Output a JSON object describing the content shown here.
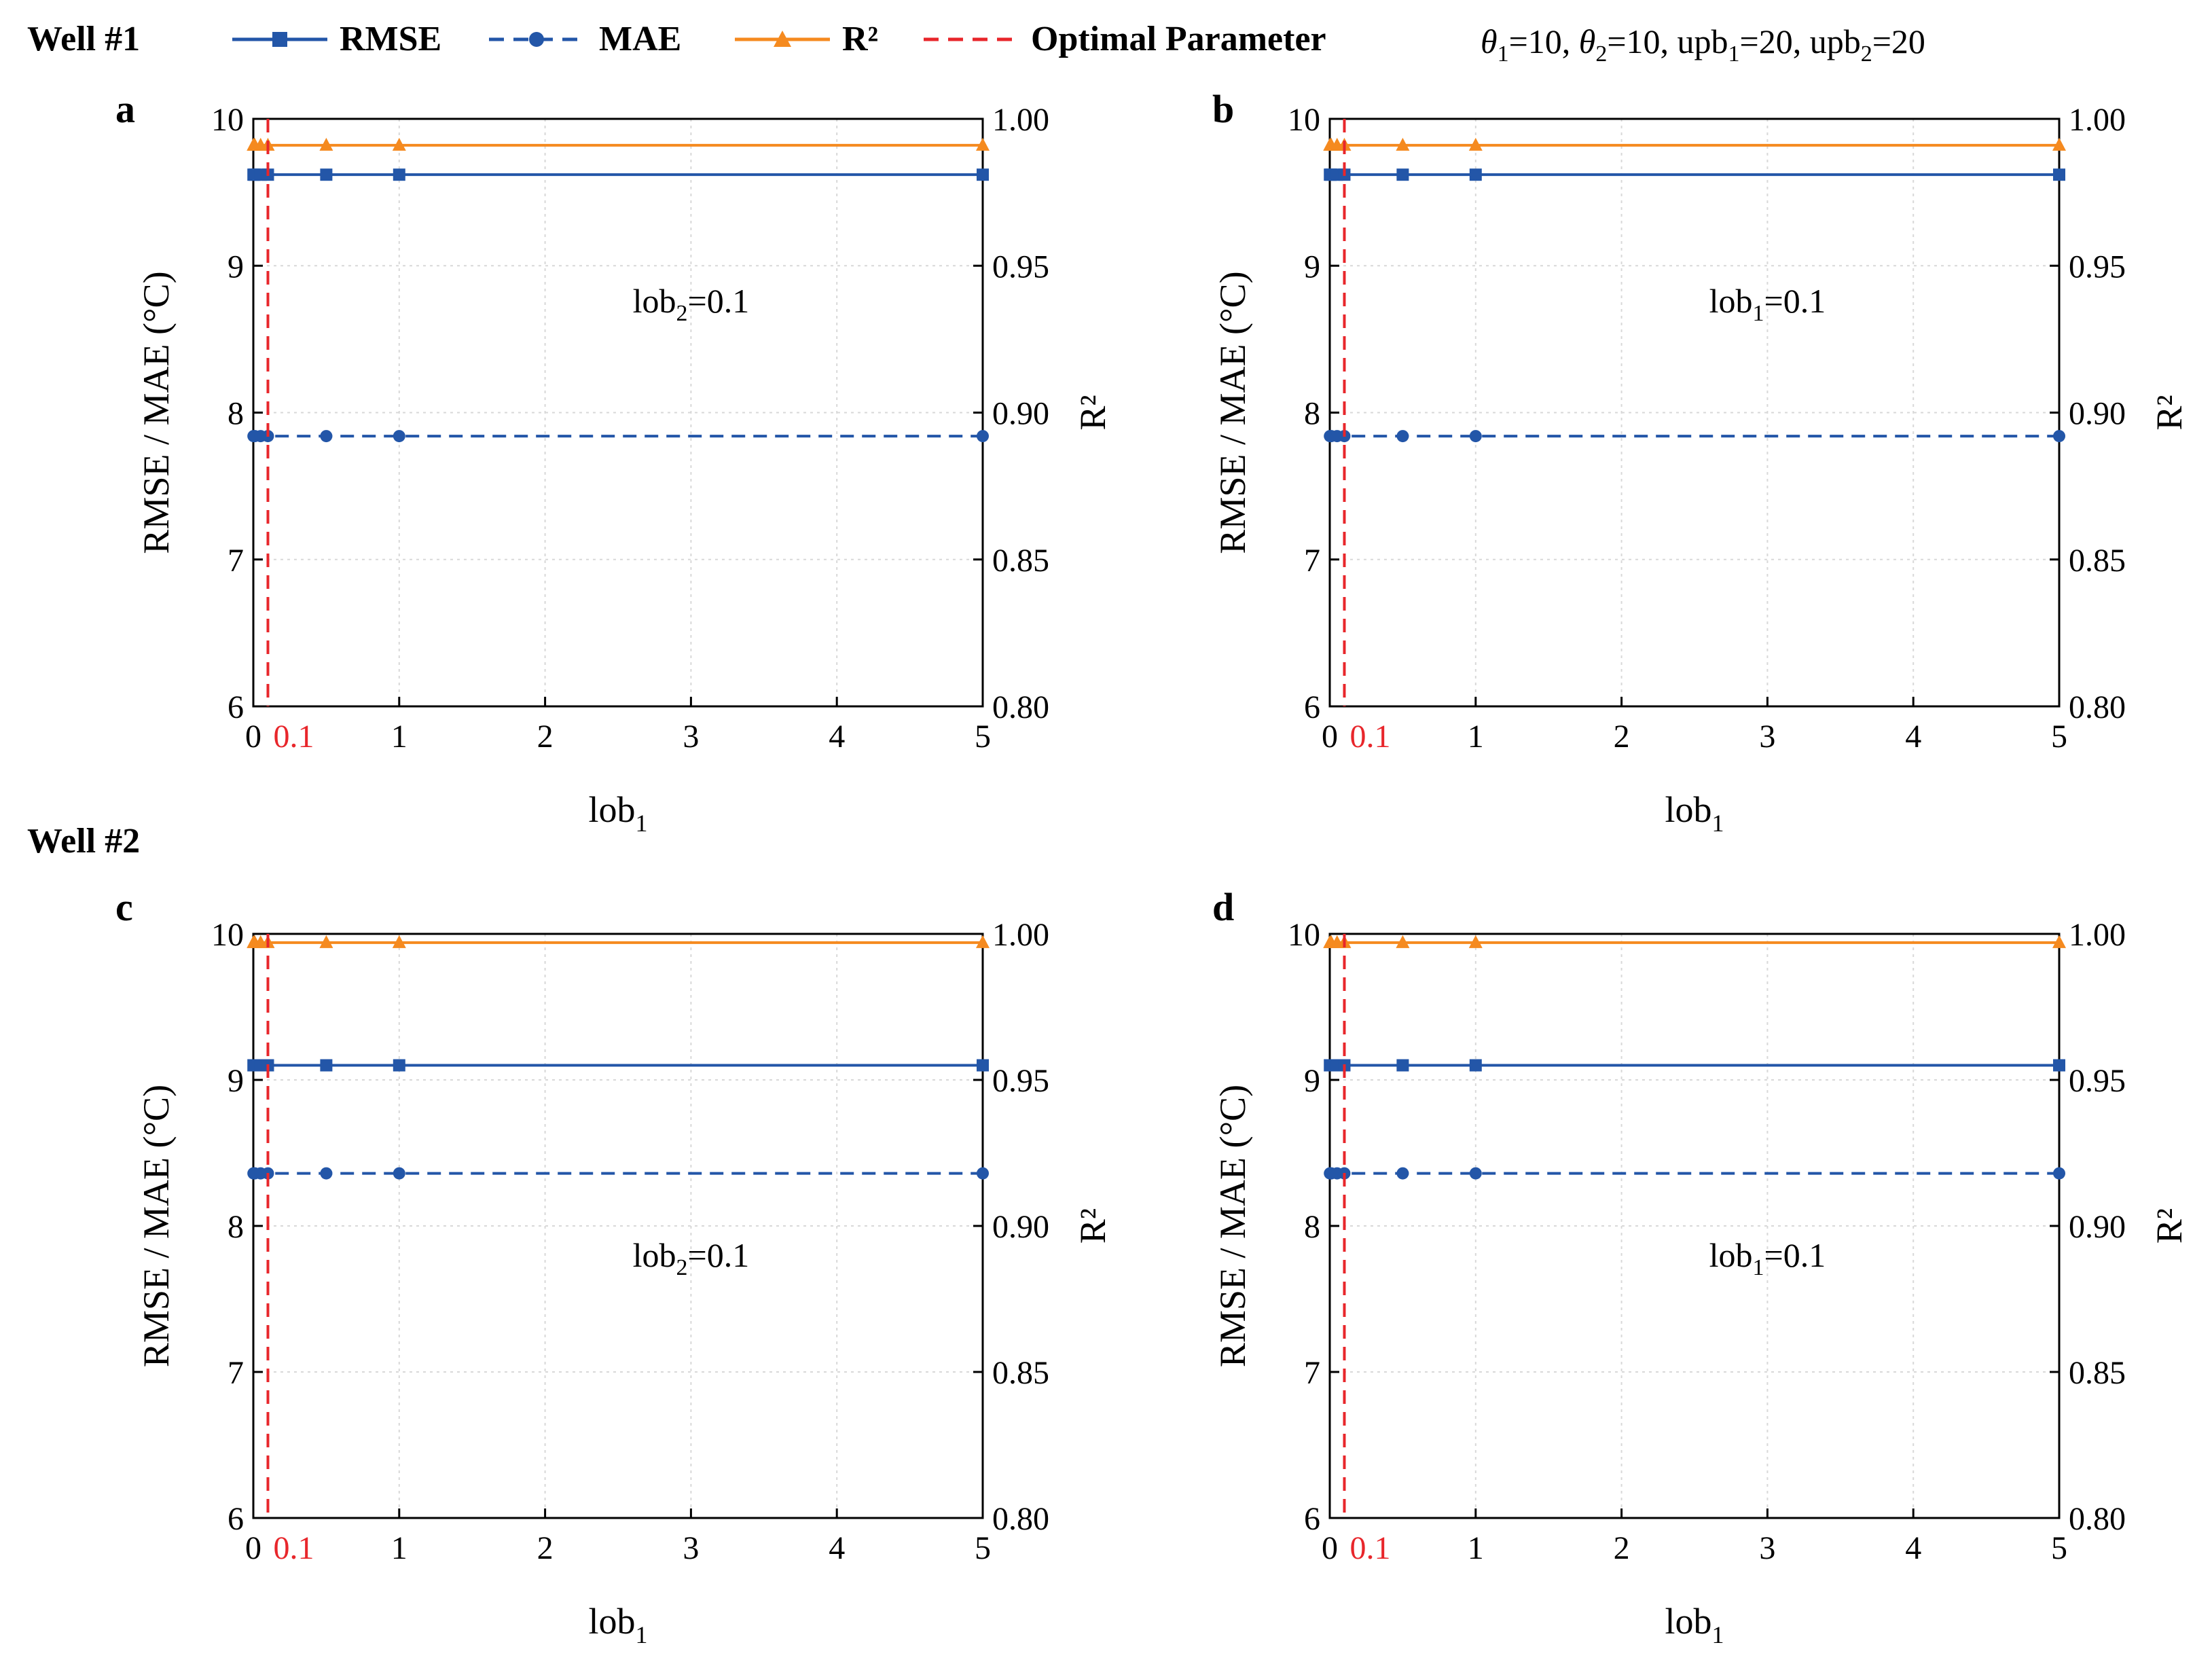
{
  "figure": {
    "well1_label": "Well #1",
    "well2_label": "Well #2",
    "params_text": {
      "theta1_sym": "θ",
      "theta1_sub": "1",
      "theta1_val": "=10, ",
      "theta2_sym": "θ",
      "theta2_sub": "2",
      "theta2_val": "=10, ",
      "upb1_base": "upb",
      "upb1_sub": "1",
      "upb1_val": "=20, ",
      "upb2_base": "upb",
      "upb2_sub": "2",
      "upb2_val": "=20"
    },
    "legend": [
      {
        "key": "rmse",
        "label": "RMSE",
        "color": "#2356A8",
        "dash": "solid",
        "marker": "square"
      },
      {
        "key": "mae",
        "label": "MAE",
        "color": "#2356A8",
        "dash": "dashed",
        "marker": "circle"
      },
      {
        "key": "r2",
        "label": "R²",
        "color": "#F58A1F",
        "dash": "solid",
        "marker": "triangle"
      },
      {
        "key": "opt",
        "label": "Optimal Parameter",
        "color": "#E8262B",
        "dash": "dashed",
        "marker": "none"
      }
    ]
  },
  "chart_data": [
    {
      "type": "line",
      "panel": "a",
      "well": "Well #1",
      "xlabel_base": "lob",
      "xlabel_sub": "1",
      "ylabel": "RMSE / MAE (°C)",
      "ylabel2": "R²",
      "annotation": {
        "base": "lob",
        "sub": "2",
        "rest": "=0.1"
      },
      "xlim": [
        0,
        5
      ],
      "ylim": [
        6,
        10
      ],
      "y2lim": [
        0.8,
        1.0
      ],
      "xticks": [
        "0",
        "1",
        "2",
        "3",
        "4",
        "5"
      ],
      "xtick_special": "0.1",
      "yticks": [
        "6",
        "7",
        "8",
        "9",
        "10"
      ],
      "y2ticks": [
        "0.80",
        "0.85",
        "0.90",
        "0.95",
        "1.00"
      ],
      "optimal_x": 0.1,
      "x": [
        0.001,
        0.01,
        0.05,
        0.1,
        0.5,
        1,
        5
      ],
      "series": [
        {
          "name": "RMSE",
          "axis": "left",
          "values": [
            9.62,
            9.62,
            9.62,
            9.62,
            9.62,
            9.62,
            9.62
          ]
        },
        {
          "name": "MAE",
          "axis": "left",
          "values": [
            7.84,
            7.84,
            7.84,
            7.84,
            7.84,
            7.84,
            7.84
          ]
        },
        {
          "name": "R²",
          "axis": "right",
          "values": [
            0.991,
            0.991,
            0.991,
            0.991,
            0.991,
            0.991,
            0.991
          ]
        }
      ]
    },
    {
      "type": "line",
      "panel": "b",
      "well": "Well #1",
      "xlabel_base": "lob",
      "xlabel_sub": "1",
      "ylabel": "RMSE / MAE (°C)",
      "ylabel2": "R²",
      "annotation": {
        "base": "lob",
        "sub": "1",
        "rest": "=0.1"
      },
      "xlim": [
        0,
        5
      ],
      "ylim": [
        6,
        10
      ],
      "y2lim": [
        0.8,
        1.0
      ],
      "xticks": [
        "0",
        "1",
        "2",
        "3",
        "4",
        "5"
      ],
      "xtick_special": "0.1",
      "yticks": [
        "6",
        "7",
        "8",
        "9",
        "10"
      ],
      "y2ticks": [
        "0.80",
        "0.85",
        "0.90",
        "0.95",
        "1.00"
      ],
      "optimal_x": 0.1,
      "x": [
        0.001,
        0.01,
        0.05,
        0.1,
        0.5,
        1,
        5
      ],
      "series": [
        {
          "name": "RMSE",
          "axis": "left",
          "values": [
            9.62,
            9.62,
            9.62,
            9.62,
            9.62,
            9.62,
            9.62
          ]
        },
        {
          "name": "MAE",
          "axis": "left",
          "values": [
            7.84,
            7.84,
            7.84,
            7.84,
            7.84,
            7.84,
            7.84
          ]
        },
        {
          "name": "R²",
          "axis": "right",
          "values": [
            0.991,
            0.991,
            0.991,
            0.991,
            0.991,
            0.991,
            0.991
          ]
        }
      ]
    },
    {
      "type": "line",
      "panel": "c",
      "well": "Well #2",
      "xlabel_base": "lob",
      "xlabel_sub": "1",
      "ylabel": "RMSE / MAE (°C)",
      "ylabel2": "R²",
      "annotation": {
        "base": "lob",
        "sub": "2",
        "rest": "=0.1"
      },
      "xlim": [
        0,
        5
      ],
      "ylim": [
        6,
        10
      ],
      "y2lim": [
        0.8,
        1.0
      ],
      "xticks": [
        "0",
        "1",
        "2",
        "3",
        "4",
        "5"
      ],
      "xtick_special": "0.1",
      "yticks": [
        "6",
        "7",
        "8",
        "9",
        "10"
      ],
      "y2ticks": [
        "0.80",
        "0.85",
        "0.90",
        "0.95",
        "1.00"
      ],
      "optimal_x": 0.1,
      "x": [
        0.001,
        0.01,
        0.05,
        0.1,
        0.5,
        1,
        5
      ],
      "series": [
        {
          "name": "RMSE",
          "axis": "left",
          "values": [
            9.1,
            9.1,
            9.1,
            9.1,
            9.1,
            9.1,
            9.1
          ]
        },
        {
          "name": "MAE",
          "axis": "left",
          "values": [
            8.36,
            8.36,
            8.36,
            8.36,
            8.36,
            8.36,
            8.36
          ]
        },
        {
          "name": "R²",
          "axis": "right",
          "values": [
            0.997,
            0.997,
            0.997,
            0.997,
            0.997,
            0.997,
            0.997
          ]
        }
      ]
    },
    {
      "type": "line",
      "panel": "d",
      "well": "Well #2",
      "xlabel_base": "lob",
      "xlabel_sub": "1",
      "ylabel": "RMSE / MAE (°C)",
      "ylabel2": "R²",
      "annotation": {
        "base": "lob",
        "sub": "1",
        "rest": "=0.1"
      },
      "xlim": [
        0,
        5
      ],
      "ylim": [
        6,
        10
      ],
      "y2lim": [
        0.8,
        1.0
      ],
      "xticks": [
        "0",
        "1",
        "2",
        "3",
        "4",
        "5"
      ],
      "xtick_special": "0.1",
      "yticks": [
        "6",
        "7",
        "8",
        "9",
        "10"
      ],
      "y2ticks": [
        "0.80",
        "0.85",
        "0.90",
        "0.95",
        "1.00"
      ],
      "optimal_x": 0.1,
      "x": [
        0.001,
        0.01,
        0.05,
        0.1,
        0.5,
        1,
        5
      ],
      "series": [
        {
          "name": "RMSE",
          "axis": "left",
          "values": [
            9.1,
            9.1,
            9.1,
            9.1,
            9.1,
            9.1,
            9.1
          ]
        },
        {
          "name": "MAE",
          "axis": "left",
          "values": [
            8.36,
            8.36,
            8.36,
            8.36,
            8.36,
            8.36,
            8.36
          ]
        },
        {
          "name": "R²",
          "axis": "right",
          "values": [
            0.997,
            0.997,
            0.997,
            0.997,
            0.997,
            0.997,
            0.997
          ]
        }
      ]
    }
  ]
}
